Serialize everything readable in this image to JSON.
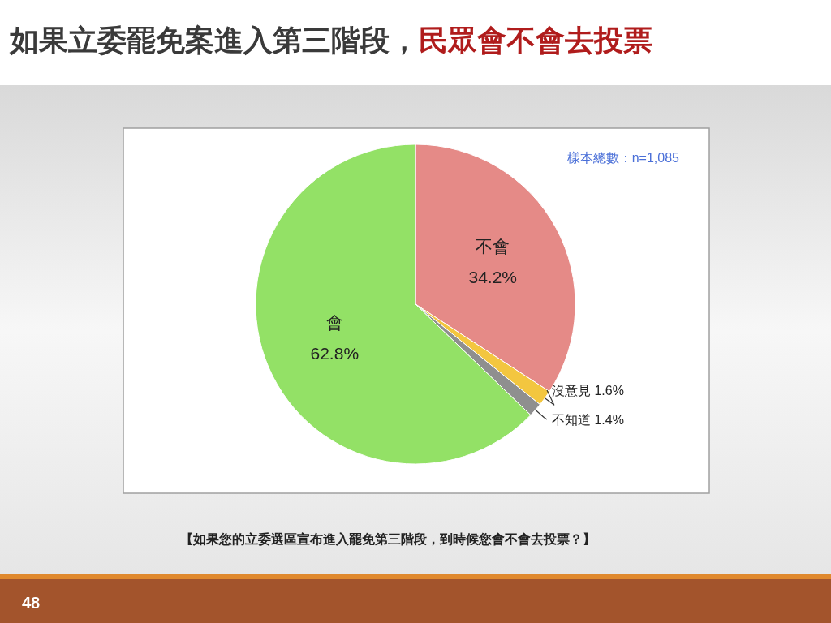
{
  "chart_data": {
    "type": "pie",
    "title": "如果立委罷免案進入第三階段，民眾會不會去投票",
    "categories": [
      "不會",
      "沒意見",
      "不知道",
      "會"
    ],
    "values": [
      34.2,
      1.6,
      1.4,
      62.8
    ],
    "value_labels": [
      "34.2%",
      "1.6%",
      "1.4%",
      "62.8%"
    ],
    "colors": [
      "#e58a87",
      "#f3c63f",
      "#8f8f8f",
      "#93e166"
    ],
    "annotations": [
      "樣本總數：n=1,085",
      "【如果您的立委選區宣布進入罷免第三階段，到時候您會不會去投票？】",
      "48"
    ]
  }
}
